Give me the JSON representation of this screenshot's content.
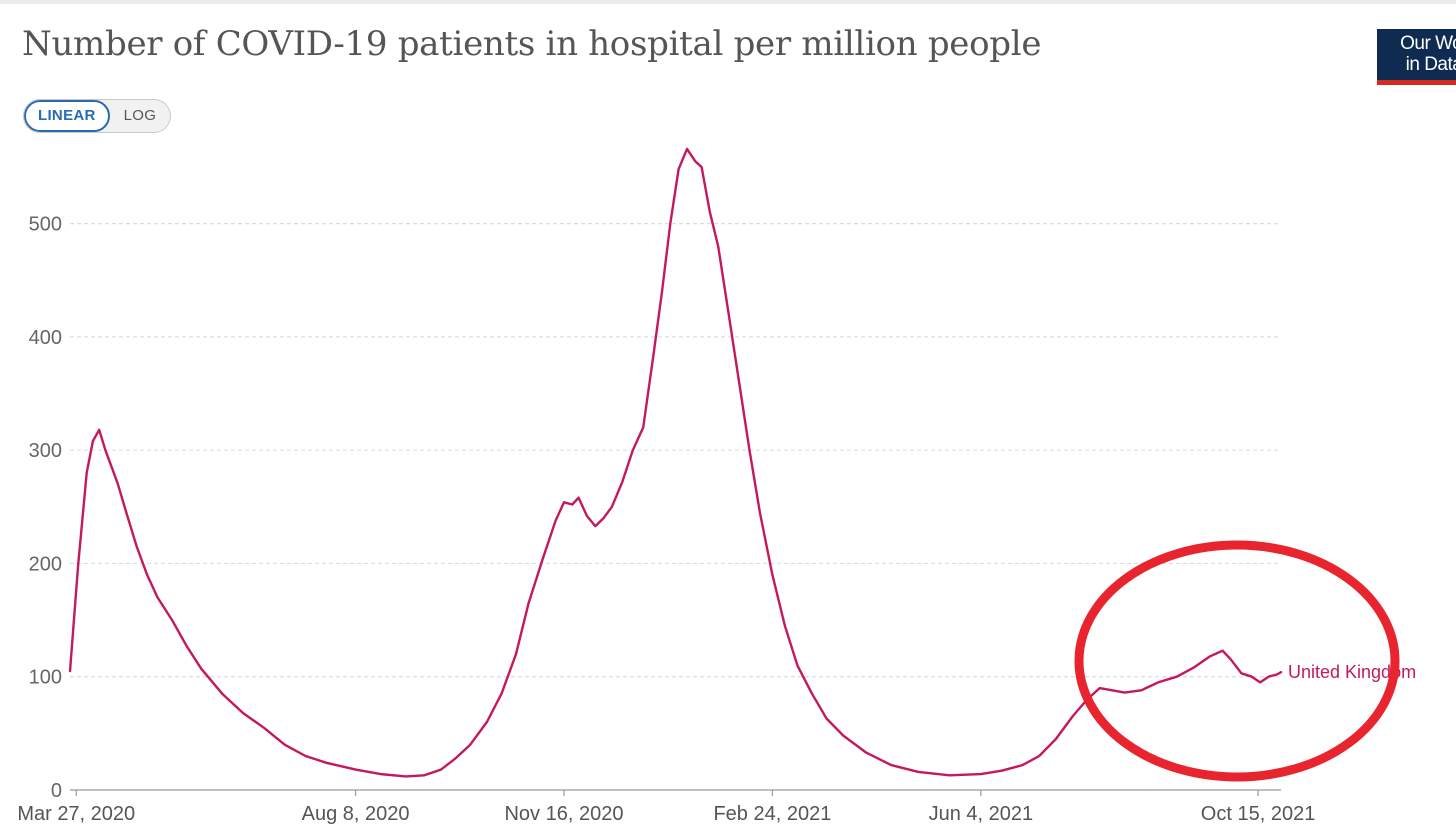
{
  "header": {
    "title": "Number of COVID-19 patients in hospital per million people",
    "scale_buttons": [
      {
        "label": "LINEAR",
        "active": true
      },
      {
        "label": "LOG",
        "active": false
      }
    ],
    "logo_lines": [
      "Our World",
      "in Data"
    ]
  },
  "colors": {
    "series": "#c4185f",
    "highlight": "#e8252f",
    "grid": "#dddddd",
    "logo_bg": "#0f2b52",
    "logo_stripe": "#d42b21",
    "active_toggle": "#2a6ab4"
  },
  "chart_data": {
    "type": "line",
    "title": "Number of COVID-19 patients in hospital per million people",
    "y_ticks": [
      0,
      100,
      200,
      300,
      400,
      500
    ],
    "ylim": [
      0,
      580
    ],
    "x_start": "2020-03-24",
    "x_end": "2021-10-26",
    "x_ticks": [
      {
        "date": "2020-03-27",
        "label": "Mar 27, 2020"
      },
      {
        "date": "2020-08-08",
        "label": "Aug 8, 2020"
      },
      {
        "date": "2020-11-16",
        "label": "Nov 16, 2020"
      },
      {
        "date": "2021-02-24",
        "label": "Feb 24, 2021"
      },
      {
        "date": "2021-06-04",
        "label": "Jun 4, 2021"
      },
      {
        "date": "2021-10-15",
        "label": "Oct 15, 2021"
      }
    ],
    "grid": true,
    "series": [
      {
        "name": "United Kingdom",
        "points": [
          [
            "2020-03-24",
            105
          ],
          [
            "2020-03-28",
            200
          ],
          [
            "2020-04-01",
            280
          ],
          [
            "2020-04-04",
            308
          ],
          [
            "2020-04-07",
            318
          ],
          [
            "2020-04-10",
            300
          ],
          [
            "2020-04-13",
            285
          ],
          [
            "2020-04-16",
            270
          ],
          [
            "2020-04-20",
            245
          ],
          [
            "2020-04-25",
            215
          ],
          [
            "2020-04-30",
            190
          ],
          [
            "2020-05-05",
            170
          ],
          [
            "2020-05-12",
            150
          ],
          [
            "2020-05-19",
            127
          ],
          [
            "2020-05-26",
            107
          ],
          [
            "2020-06-05",
            85
          ],
          [
            "2020-06-15",
            68
          ],
          [
            "2020-06-25",
            55
          ],
          [
            "2020-07-05",
            40
          ],
          [
            "2020-07-15",
            30
          ],
          [
            "2020-07-25",
            24
          ],
          [
            "2020-08-08",
            18
          ],
          [
            "2020-08-20",
            14
          ],
          [
            "2020-09-01",
            12
          ],
          [
            "2020-09-10",
            13
          ],
          [
            "2020-09-18",
            18
          ],
          [
            "2020-09-25",
            28
          ],
          [
            "2020-10-02",
            40
          ],
          [
            "2020-10-10",
            60
          ],
          [
            "2020-10-17",
            85
          ],
          [
            "2020-10-24",
            120
          ],
          [
            "2020-10-30",
            165
          ],
          [
            "2020-11-06",
            205
          ],
          [
            "2020-11-12",
            238
          ],
          [
            "2020-11-16",
            254
          ],
          [
            "2020-11-20",
            252
          ],
          [
            "2020-11-23",
            258
          ],
          [
            "2020-11-27",
            242
          ],
          [
            "2020-12-01",
            233
          ],
          [
            "2020-12-05",
            240
          ],
          [
            "2020-12-09",
            250
          ],
          [
            "2020-12-14",
            272
          ],
          [
            "2020-12-19",
            300
          ],
          [
            "2020-12-24",
            320
          ],
          [
            "2020-12-29",
            385
          ],
          [
            "2021-01-02",
            440
          ],
          [
            "2021-01-06",
            500
          ],
          [
            "2021-01-10",
            548
          ],
          [
            "2021-01-14",
            566
          ],
          [
            "2021-01-18",
            555
          ],
          [
            "2021-01-21",
            550
          ],
          [
            "2021-01-25",
            510
          ],
          [
            "2021-01-29",
            480
          ],
          [
            "2021-02-03",
            420
          ],
          [
            "2021-02-08",
            360
          ],
          [
            "2021-02-13",
            300
          ],
          [
            "2021-02-18",
            245
          ],
          [
            "2021-02-24",
            190
          ],
          [
            "2021-03-02",
            145
          ],
          [
            "2021-03-08",
            110
          ],
          [
            "2021-03-15",
            85
          ],
          [
            "2021-03-22",
            63
          ],
          [
            "2021-03-30",
            48
          ],
          [
            "2021-04-10",
            33
          ],
          [
            "2021-04-22",
            22
          ],
          [
            "2021-05-05",
            16
          ],
          [
            "2021-05-20",
            13
          ],
          [
            "2021-06-04",
            14
          ],
          [
            "2021-06-14",
            17
          ],
          [
            "2021-06-24",
            22
          ],
          [
            "2021-07-02",
            30
          ],
          [
            "2021-07-10",
            45
          ],
          [
            "2021-07-18",
            65
          ],
          [
            "2021-07-25",
            80
          ],
          [
            "2021-07-31",
            90
          ],
          [
            "2021-08-06",
            88
          ],
          [
            "2021-08-12",
            86
          ],
          [
            "2021-08-20",
            88
          ],
          [
            "2021-08-28",
            95
          ],
          [
            "2021-09-06",
            100
          ],
          [
            "2021-09-14",
            108
          ],
          [
            "2021-09-22",
            118
          ],
          [
            "2021-09-28",
            123
          ],
          [
            "2021-10-02",
            115
          ],
          [
            "2021-10-07",
            103
          ],
          [
            "2021-10-12",
            100
          ],
          [
            "2021-10-16",
            95
          ],
          [
            "2021-10-20",
            100
          ],
          [
            "2021-10-24",
            102
          ],
          [
            "2021-10-26",
            104
          ]
        ]
      }
    ]
  }
}
